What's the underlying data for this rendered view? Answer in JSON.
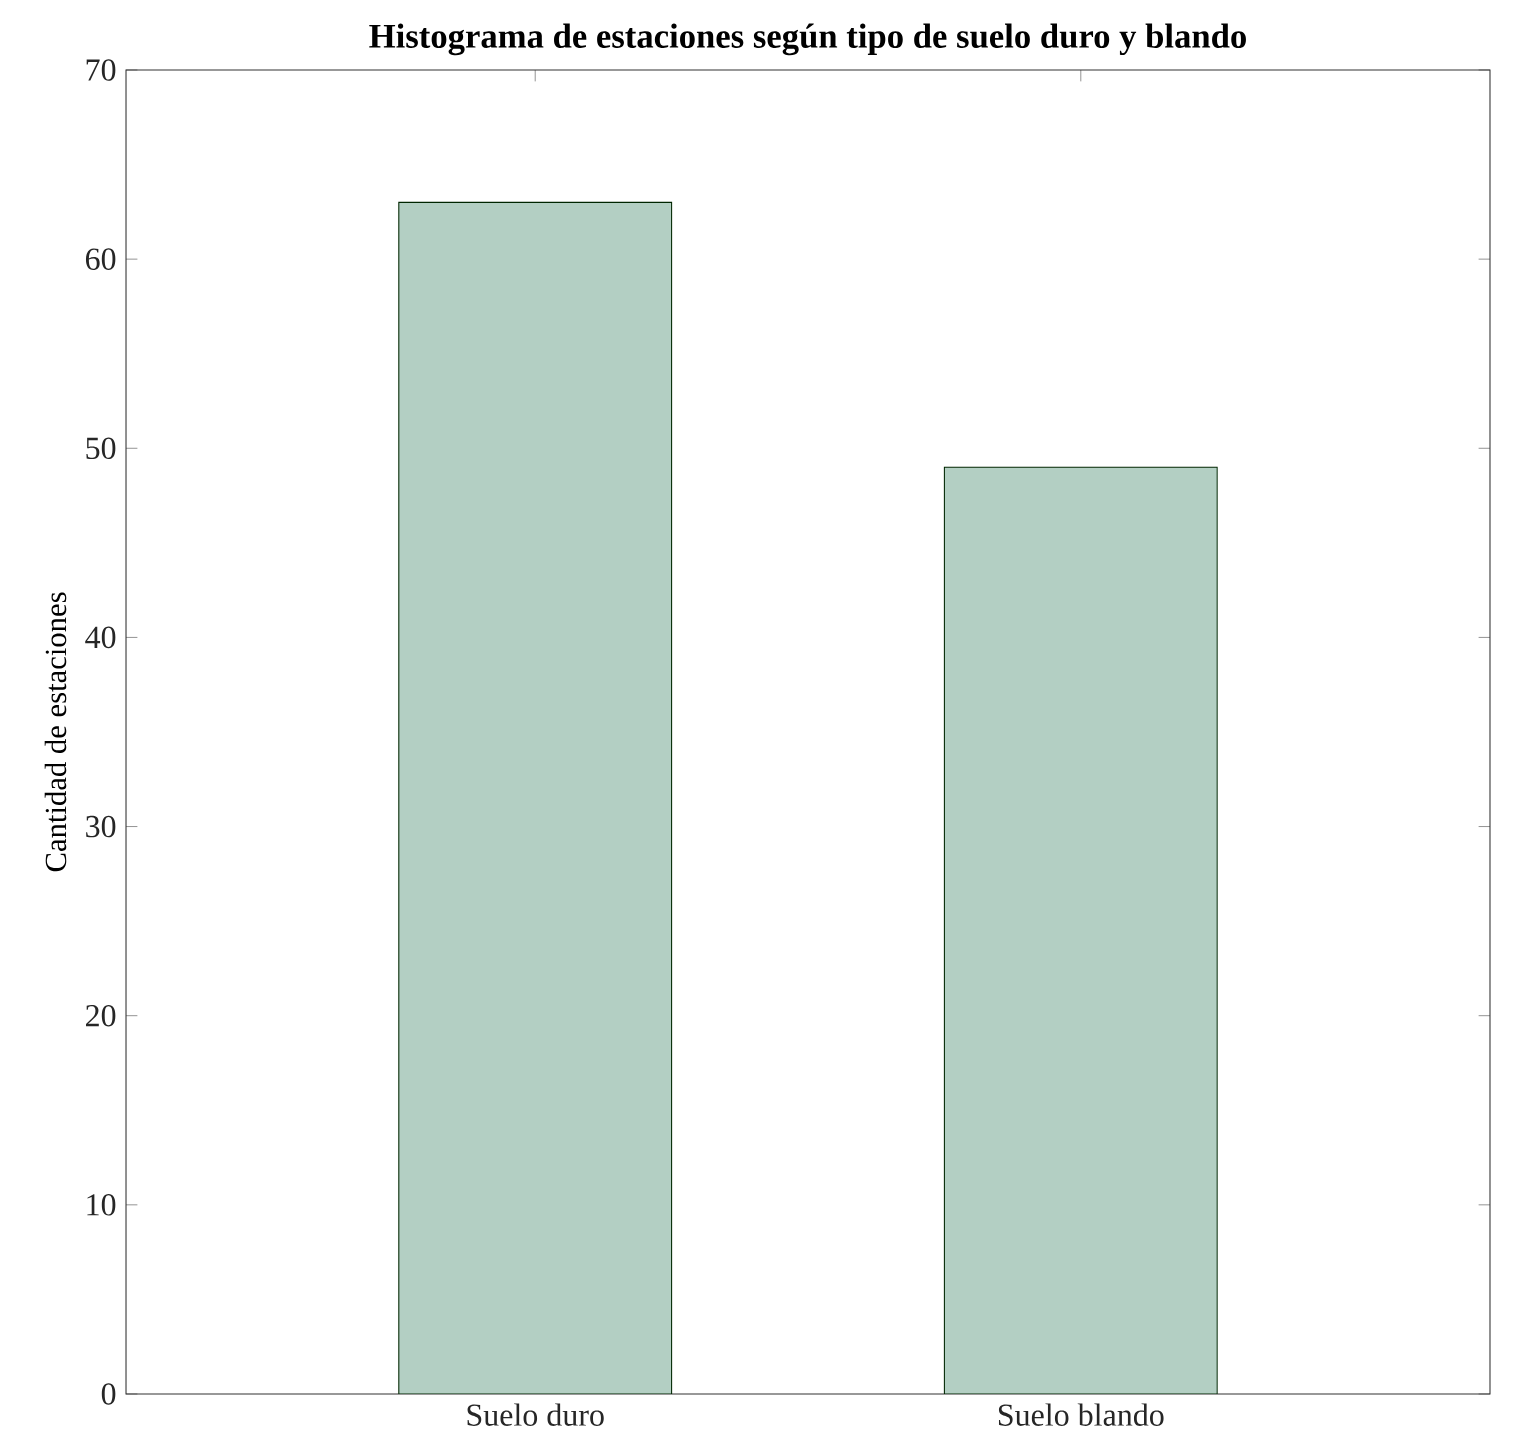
{
  "chart_data": {
    "type": "bar",
    "title": "Histograma de estaciones según tipo de suelo duro y blando",
    "ylabel": "Cantidad de estaciones",
    "categories": [
      "Suelo duro",
      "Suelo blando"
    ],
    "values": [
      63,
      49
    ],
    "color": "#b3cfc3",
    "ylim": [
      0,
      70
    ],
    "yticks": [
      0,
      10,
      20,
      30,
      40,
      50,
      60,
      70
    ],
    "grid": false
  }
}
